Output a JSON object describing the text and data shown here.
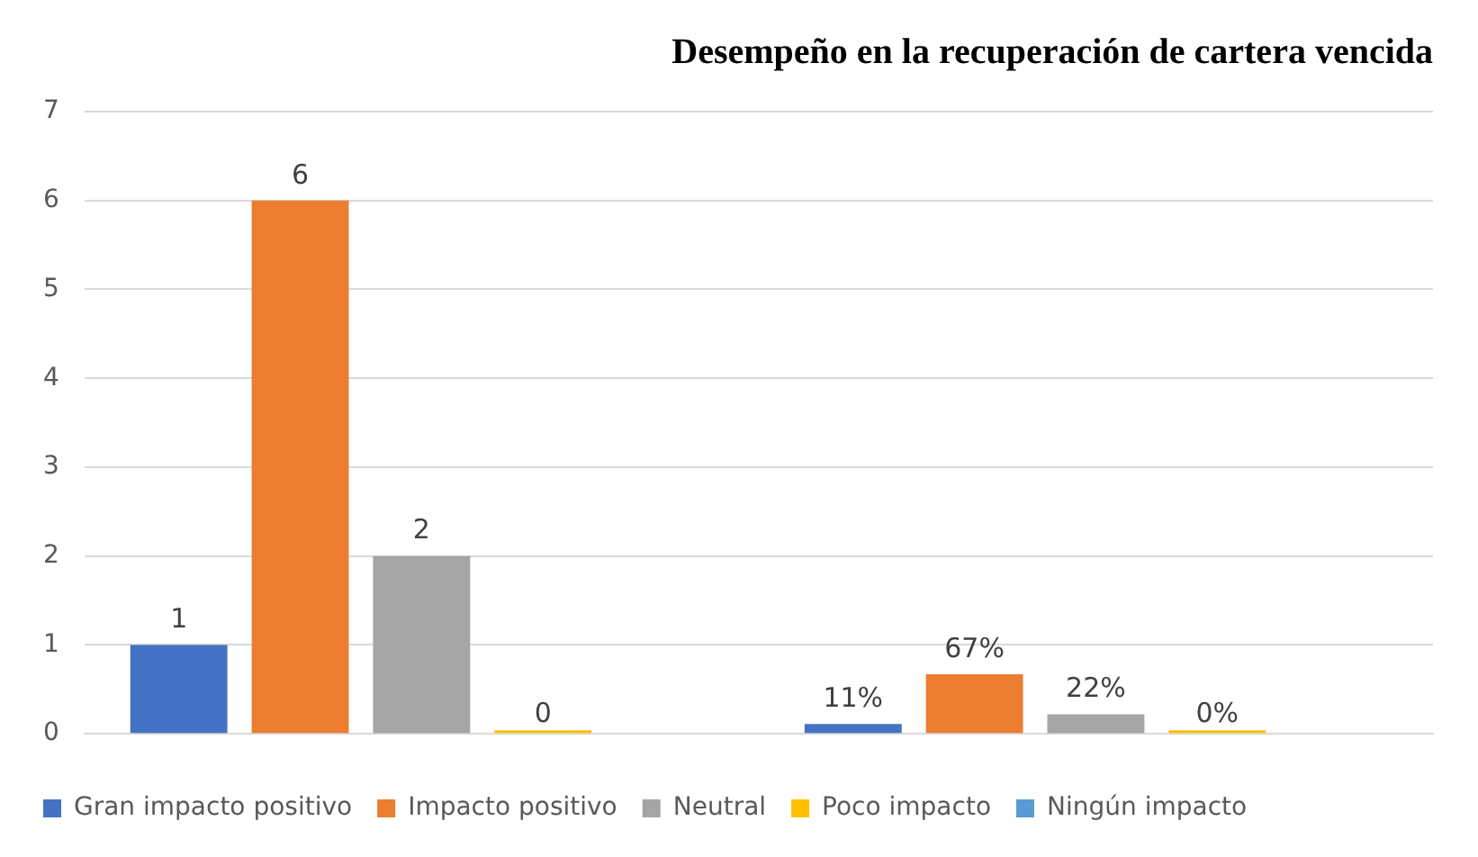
{
  "chart_data": {
    "type": "bar",
    "title": "Desempeño en la recuperación de cartera vencida",
    "categories": [
      null,
      null
    ],
    "series": [
      {
        "name": "Gran impacto positivo",
        "color": "#4472c4",
        "values": [
          1,
          0.11
        ],
        "value_labels": [
          "1",
          "11%"
        ]
      },
      {
        "name": "Impacto positivo",
        "color": "#ed7d31",
        "values": [
          6,
          0.67
        ],
        "value_labels": [
          "6",
          "67%"
        ]
      },
      {
        "name": "Neutral",
        "color": "#a5a5a5",
        "values": [
          2,
          0.22
        ],
        "value_labels": [
          "2",
          "22%"
        ]
      },
      {
        "name": "Poco impacto",
        "color": "#ffc000",
        "values": [
          0,
          0
        ],
        "value_labels": [
          "0",
          "0%"
        ]
      },
      {
        "name": "Ningún impacto",
        "color": "#5b9bd5",
        "values": [
          null,
          null
        ]
      }
    ],
    "ylim": [
      0,
      7
    ],
    "yticks": [
      0,
      1,
      2,
      3,
      4,
      5,
      6,
      7
    ],
    "grid": "y",
    "legend": "bottom"
  }
}
